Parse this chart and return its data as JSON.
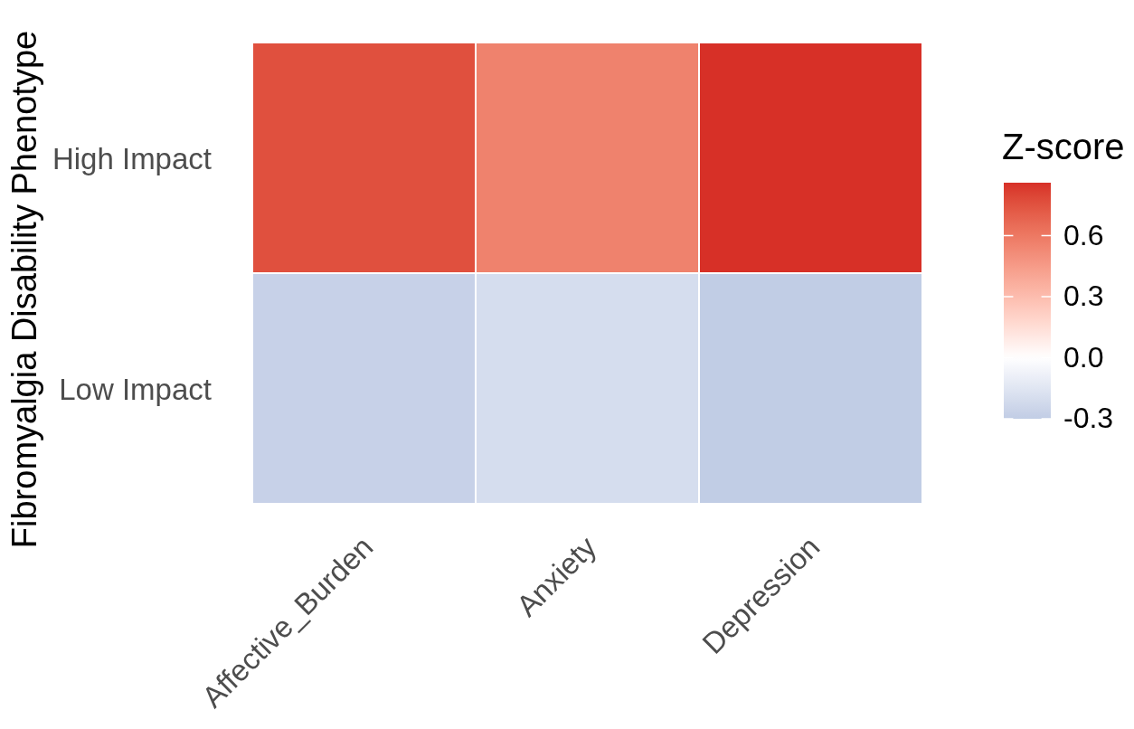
{
  "chart_data": {
    "type": "heatmap",
    "ylabel": "Fibromyalgia Disability Phenotype",
    "clabel": "Z-score",
    "categories": [
      "Affective_Burden",
      "Anxiety",
      "Depression"
    ],
    "y_categories": [
      "High Impact",
      "Low Impact"
    ],
    "cells": [
      [
        0.76,
        0.56,
        0.86
      ],
      [
        -0.27,
        -0.2,
        -0.3
      ]
    ],
    "clim": [
      -0.3,
      0.86
    ],
    "cticks": [
      -0.3,
      {
        "value": 0,
        "label": "0.0"
      },
      0.3,
      0.6
    ]
  }
}
